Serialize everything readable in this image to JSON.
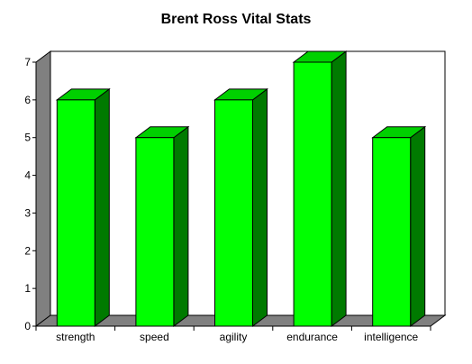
{
  "chart_data": {
    "type": "bar",
    "title": "Brent Ross Vital Stats",
    "xlabel": "",
    "ylabel": "",
    "categories": [
      "strength",
      "speed",
      "agility",
      "endurance",
      "intelligence"
    ],
    "values": [
      6,
      5,
      6,
      7,
      5
    ],
    "ylim": [
      0,
      7
    ],
    "yticks": [
      0,
      1,
      2,
      3,
      4,
      5,
      6,
      7
    ],
    "grid": false,
    "legend": "none",
    "style": "3d",
    "colors": {
      "bar_front": "#00ff00",
      "bar_top": "#00d000",
      "bar_side": "#007a00",
      "wall": "#808080",
      "background": "#ffffff"
    }
  }
}
